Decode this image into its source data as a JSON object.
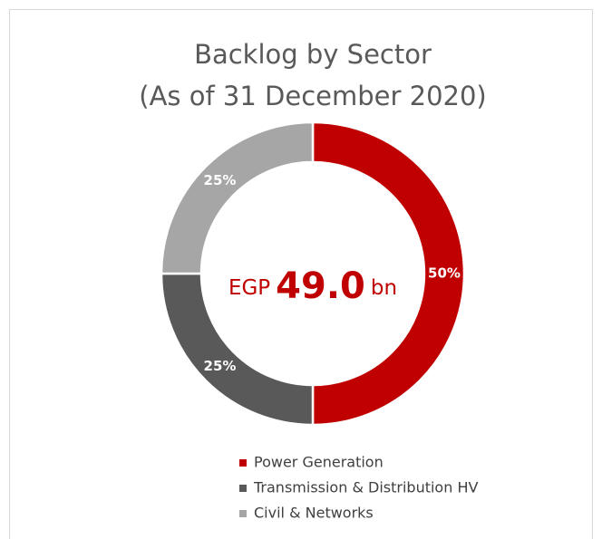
{
  "chart_data": {
    "type": "donut",
    "title": "Backlog by Sector",
    "subtitle": "(As of 31 December 2020)",
    "center_text": [
      "EGP",
      "49.0",
      "bn"
    ],
    "categories": [
      "Power Generation",
      "Transmission & Distribution HV",
      "Civil & Networks"
    ],
    "values": [
      50,
      25,
      25
    ],
    "value_labels": [
      "50%",
      "25%",
      "25%"
    ],
    "colors": [
      "#c00000",
      "#595959",
      "#a6a6a6"
    ],
    "legend": "bottom"
  }
}
